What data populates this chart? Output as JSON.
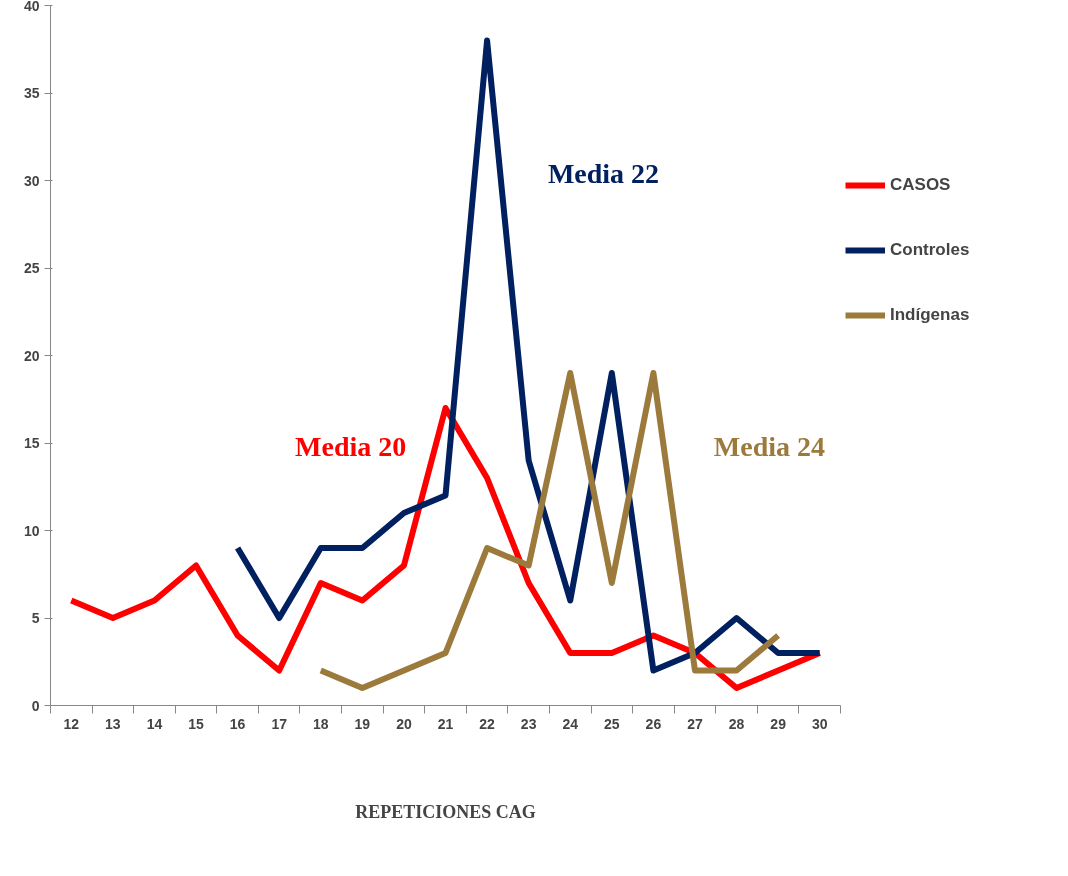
{
  "chart_data": {
    "type": "line",
    "xlabel": "REPETICIONES CAG",
    "categories": [
      "12",
      "13",
      "14",
      "15",
      "16",
      "17",
      "18",
      "19",
      "20",
      "21",
      "22",
      "23",
      "24",
      "25",
      "26",
      "27",
      "28",
      "29",
      "30"
    ],
    "series": [
      {
        "name": "CASOS",
        "color": "#ff0000",
        "values": [
          6,
          5,
          6,
          8,
          4,
          2,
          7,
          6,
          8,
          17,
          13,
          7,
          3,
          3,
          4,
          3,
          1,
          2,
          3
        ]
      },
      {
        "name": "Controles",
        "color": "#002060",
        "values": [
          null,
          null,
          null,
          null,
          9,
          5,
          9,
          9,
          11,
          12,
          38,
          14,
          6,
          19,
          2,
          3,
          5,
          3,
          3
        ]
      },
      {
        "name": "Indígenas",
        "color": "#9c7a3c",
        "values": [
          null,
          null,
          null,
          null,
          null,
          null,
          2,
          1,
          2,
          3,
          9,
          8,
          19,
          7,
          19,
          2,
          2,
          4,
          null
        ]
      }
    ],
    "annotations": [
      "Media 20",
      "Media 22",
      "Media 24"
    ],
    "ylim": [
      0,
      40
    ],
    "yticks": [
      0,
      5,
      10,
      15,
      20,
      25,
      30,
      35,
      40
    ],
    "grid": false,
    "legend": "right",
    "marker": "none",
    "line_style": "solid"
  }
}
